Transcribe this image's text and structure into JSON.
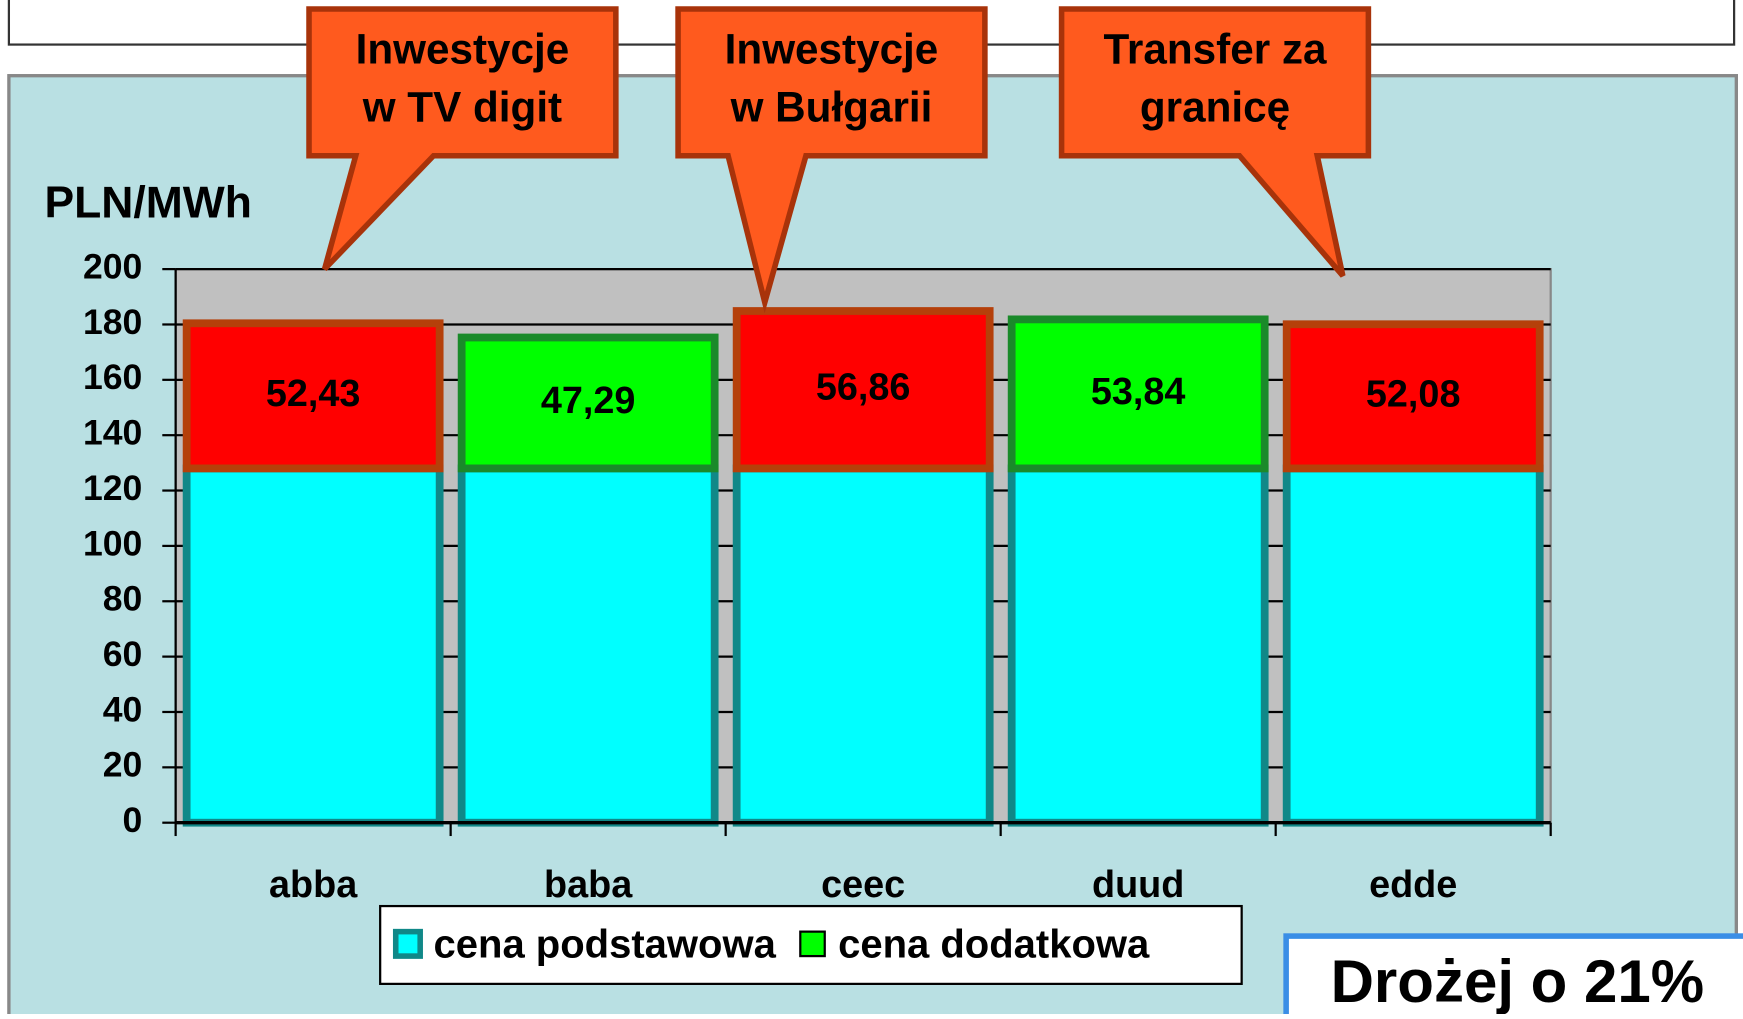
{
  "chart_data": {
    "type": "bar",
    "stacked": true,
    "y_label": "PLN/MWh",
    "categories": [
      "abba",
      "baba",
      "ceec",
      "duud",
      "edde"
    ],
    "series": [
      {
        "name": "cena podstawowa",
        "color": "#00ffff",
        "values": [
          128,
          128,
          128,
          128,
          128
        ]
      },
      {
        "name": "cena dodatkowa",
        "color": "#00ff00",
        "colors": [
          "#ff0000",
          "#00ff00",
          "#ff0000",
          "#00ff00",
          "#ff0000"
        ],
        "values": [
          52.43,
          47.29,
          56.86,
          53.84,
          52.08
        ],
        "value_labels": [
          "52,43",
          "47,29",
          "56,86",
          "53,84",
          "52,08"
        ]
      }
    ],
    "ylim": [
      0,
      200
    ],
    "yticks": [
      0,
      20,
      40,
      60,
      80,
      100,
      120,
      140,
      160,
      180,
      200
    ],
    "grid": true,
    "annotations": [
      {
        "text": [
          "Inwestycje",
          "w TV digit"
        ]
      },
      {
        "text": [
          "Inwestycje",
          "w Bułgarii"
        ]
      },
      {
        "text": [
          "Transfer za",
          "granicę"
        ]
      }
    ],
    "note": "Drożej o 21%"
  }
}
